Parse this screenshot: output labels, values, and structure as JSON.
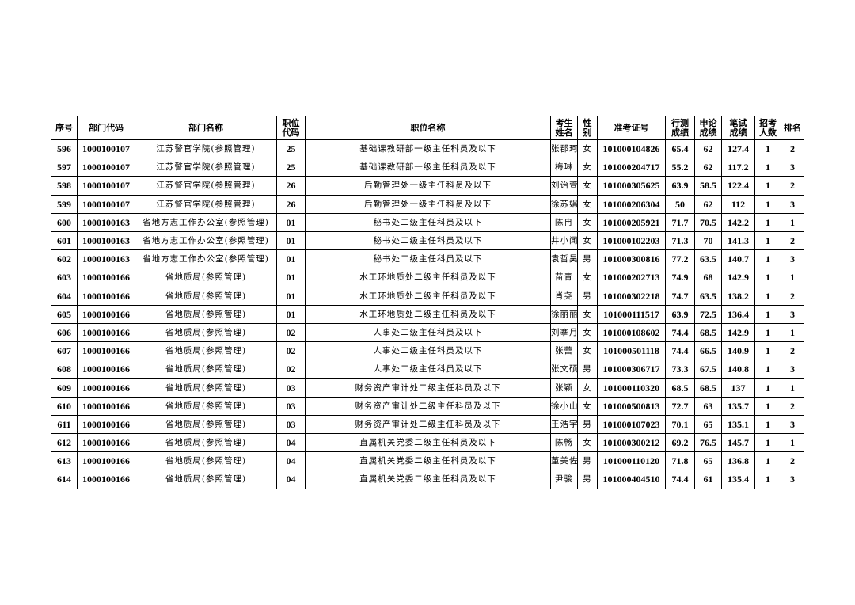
{
  "headers": [
    "序号",
    "部门代码",
    "部门名称",
    "职位\n代码",
    "职位名称",
    "考生\n姓名",
    "性\n别",
    "准考证号",
    "行测\n成绩",
    "申论\n成绩",
    "笔试\n成绩",
    "招考\n人数",
    "排名"
  ],
  "rows": [
    [
      "596",
      "1000100107",
      "江苏警官学院(参照管理)",
      "25",
      "基础课教研部一级主任科员及以下",
      "张郡珂",
      "女",
      "101000104826",
      "65.4",
      "62",
      "127.4",
      "1",
      "2"
    ],
    [
      "597",
      "1000100107",
      "江苏警官学院(参照管理)",
      "25",
      "基础课教研部一级主任科员及以下",
      "梅琳",
      "女",
      "101000204717",
      "55.2",
      "62",
      "117.2",
      "1",
      "3"
    ],
    [
      "598",
      "1000100107",
      "江苏警官学院(参照管理)",
      "26",
      "后勤管理处一级主任科员及以下",
      "刘诒萱",
      "女",
      "101000305625",
      "63.9",
      "58.5",
      "122.4",
      "1",
      "2"
    ],
    [
      "599",
      "1000100107",
      "江苏警官学院(参照管理)",
      "26",
      "后勤管理处一级主任科员及以下",
      "徐苏娟",
      "女",
      "101000206304",
      "50",
      "62",
      "112",
      "1",
      "3"
    ],
    [
      "600",
      "1000100163",
      "省地方志工作办公室(参照管理)",
      "01",
      "秘书处二级主任科员及以下",
      "陈冉",
      "女",
      "101000205921",
      "71.7",
      "70.5",
      "142.2",
      "1",
      "1"
    ],
    [
      "601",
      "1000100163",
      "省地方志工作办公室(参照管理)",
      "01",
      "秘书处二级主任科员及以下",
      "井小闻",
      "女",
      "101000102203",
      "71.3",
      "70",
      "141.3",
      "1",
      "2"
    ],
    [
      "602",
      "1000100163",
      "省地方志工作办公室(参照管理)",
      "01",
      "秘书处二级主任科员及以下",
      "袁哲昊",
      "男",
      "101000300816",
      "77.2",
      "63.5",
      "140.7",
      "1",
      "3"
    ],
    [
      "603",
      "1000100166",
      "省地质局(参照管理)",
      "01",
      "水工环地质处二级主任科员及以下",
      "苗青",
      "女",
      "101000202713",
      "74.9",
      "68",
      "142.9",
      "1",
      "1"
    ],
    [
      "604",
      "1000100166",
      "省地质局(参照管理)",
      "01",
      "水工环地质处二级主任科员及以下",
      "肖尧",
      "男",
      "101000302218",
      "74.7",
      "63.5",
      "138.2",
      "1",
      "2"
    ],
    [
      "605",
      "1000100166",
      "省地质局(参照管理)",
      "01",
      "水工环地质处二级主任科员及以下",
      "徐丽丽",
      "女",
      "101000111517",
      "63.9",
      "72.5",
      "136.4",
      "1",
      "3"
    ],
    [
      "606",
      "1000100166",
      "省地质局(参照管理)",
      "02",
      "人事处二级主任科员及以下",
      "刘搴月",
      "女",
      "101000108602",
      "74.4",
      "68.5",
      "142.9",
      "1",
      "1"
    ],
    [
      "607",
      "1000100166",
      "省地质局(参照管理)",
      "02",
      "人事处二级主任科员及以下",
      "张蕾",
      "女",
      "101000501118",
      "74.4",
      "66.5",
      "140.9",
      "1",
      "2"
    ],
    [
      "608",
      "1000100166",
      "省地质局(参照管理)",
      "02",
      "人事处二级主任科员及以下",
      "张文硕",
      "男",
      "101000306717",
      "73.3",
      "67.5",
      "140.8",
      "1",
      "3"
    ],
    [
      "609",
      "1000100166",
      "省地质局(参照管理)",
      "03",
      "财务资产审计处二级主任科员及以下",
      "张颖",
      "女",
      "101000110320",
      "68.5",
      "68.5",
      "137",
      "1",
      "1"
    ],
    [
      "610",
      "1000100166",
      "省地质局(参照管理)",
      "03",
      "财务资产审计处二级主任科员及以下",
      "徐小山",
      "女",
      "101000500813",
      "72.7",
      "63",
      "135.7",
      "1",
      "2"
    ],
    [
      "611",
      "1000100166",
      "省地质局(参照管理)",
      "03",
      "财务资产审计处二级主任科员及以下",
      "王浩宇",
      "男",
      "101000107023",
      "70.1",
      "65",
      "135.1",
      "1",
      "3"
    ],
    [
      "612",
      "1000100166",
      "省地质局(参照管理)",
      "04",
      "直属机关党委二级主任科员及以下",
      "陈畅",
      "女",
      "101000300212",
      "69.2",
      "76.5",
      "145.7",
      "1",
      "1"
    ],
    [
      "613",
      "1000100166",
      "省地质局(参照管理)",
      "04",
      "直属机关党委二级主任科员及以下",
      "董美佐",
      "男",
      "101000110120",
      "71.8",
      "65",
      "136.8",
      "1",
      "2"
    ],
    [
      "614",
      "1000100166",
      "省地质局(参照管理)",
      "04",
      "直属机关党委二级主任科员及以下",
      "尹骏",
      "男",
      "101000404510",
      "74.4",
      "61",
      "135.4",
      "1",
      "3"
    ]
  ]
}
